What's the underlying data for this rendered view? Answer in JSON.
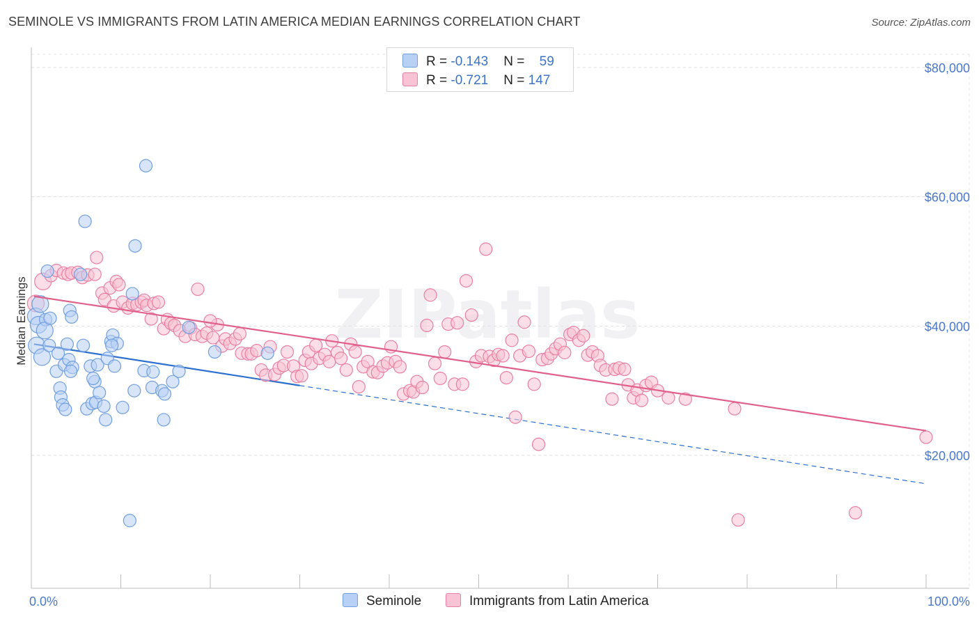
{
  "title": "SEMINOLE VS IMMIGRANTS FROM LATIN AMERICA MEDIAN EARNINGS CORRELATION CHART",
  "source": "Source: ZipAtlas.com",
  "watermark": "ZIPatlas",
  "colors": {
    "seminole": "#6f9fe0",
    "seminole_fill": "#b8d0f4",
    "seminole_line": "#2b6fd1",
    "latin": "#ea7fa3",
    "latin_fill": "#f8c3d4",
    "latin_line": "#e0608a",
    "tick_text": "#4a78c8"
  },
  "legend": {
    "rows": [
      {
        "r_label": "R = ",
        "r_value": "-0.143",
        "n_label": "N = ",
        "n_value": "59"
      },
      {
        "r_label": "R = ",
        "r_value": "-0.721",
        "n_label": "N = ",
        "n_value": "147"
      }
    ]
  },
  "bottom_legend": [
    "Seminole",
    "Immigrants from Latin America"
  ],
  "chart_data": {
    "type": "scatter",
    "xlabel": "",
    "ylabel": "Median Earnings",
    "xlim": [
      0,
      100
    ],
    "ylim": [
      0,
      82000
    ],
    "x_tick_labels": [
      "0.0%",
      "100.0%"
    ],
    "y_ticks": [
      20000,
      40000,
      60000,
      80000
    ],
    "y_tick_labels": [
      "$20,000",
      "$40,000",
      "$60,000",
      "$80,000"
    ],
    "grid": true,
    "legend_position": "top-center",
    "series": [
      {
        "name": "Seminole",
        "stats": {
          "R": -0.143,
          "N": 59
        },
        "trend": {
          "x0": 0.3,
          "y0": 37200,
          "x1": 30,
          "y1": 30800,
          "dashed_to_x": 100,
          "dashed_y1": 15600
        },
        "points": [
          [
            0.5,
            41500
          ],
          [
            0.8,
            40200
          ],
          [
            0.6,
            37000
          ],
          [
            1.2,
            35200
          ],
          [
            1.8,
            48500
          ],
          [
            1.6,
            41000
          ],
          [
            1.5,
            39300
          ],
          [
            2.1,
            41200
          ],
          [
            2.0,
            37000
          ],
          [
            2.8,
            33000
          ],
          [
            3.0,
            35800
          ],
          [
            3.2,
            30400
          ],
          [
            3.3,
            29000
          ],
          [
            3.5,
            27800
          ],
          [
            3.8,
            27100
          ],
          [
            4.0,
            37200
          ],
          [
            3.7,
            34000
          ],
          [
            4.2,
            34800
          ],
          [
            4.3,
            42400
          ],
          [
            4.5,
            41400
          ],
          [
            4.6,
            33600
          ],
          [
            5.5,
            48000
          ],
          [
            4.4,
            33000
          ],
          [
            5.8,
            37000
          ],
          [
            6.2,
            27200
          ],
          [
            6.0,
            56200
          ],
          [
            6.6,
            33800
          ],
          [
            6.8,
            28000
          ],
          [
            7.1,
            31400
          ],
          [
            6.9,
            31900
          ],
          [
            7.2,
            28200
          ],
          [
            7.6,
            29700
          ],
          [
            8.1,
            27600
          ],
          [
            8.3,
            25500
          ],
          [
            7.4,
            34000
          ],
          [
            8.5,
            35000
          ],
          [
            8.9,
            37600
          ],
          [
            9.1,
            38600
          ],
          [
            9.3,
            33800
          ],
          [
            9.6,
            37300
          ],
          [
            9.0,
            37000
          ],
          [
            10.2,
            27400
          ],
          [
            11.0,
            9900
          ],
          [
            11.3,
            45000
          ],
          [
            11.5,
            30000
          ],
          [
            11.6,
            52400
          ],
          [
            12.6,
            33100
          ],
          [
            12.8,
            64800
          ],
          [
            13.5,
            30500
          ],
          [
            13.6,
            32900
          ],
          [
            14.6,
            30000
          ],
          [
            14.9,
            29500
          ],
          [
            14.8,
            25500
          ],
          [
            15.8,
            31400
          ],
          [
            16.5,
            33000
          ],
          [
            17.6,
            39800
          ],
          [
            20.5,
            36000
          ],
          [
            26.4,
            35800
          ],
          [
            1.0,
            43400
          ]
        ]
      },
      {
        "name": "Immigrants from Latin America",
        "stats": {
          "R": -0.721,
          "N": 147
        },
        "trend": {
          "x0": 0.3,
          "y0": 44600,
          "x1": 100,
          "y1": 23800
        },
        "points": [
          [
            0.5,
            43500
          ],
          [
            1.3,
            46900
          ],
          [
            2.2,
            47800
          ],
          [
            2.8,
            48600
          ],
          [
            3.6,
            48200
          ],
          [
            4.1,
            48000
          ],
          [
            4.5,
            48200
          ],
          [
            5.2,
            48300
          ],
          [
            5.7,
            47500
          ],
          [
            6.3,
            47900
          ],
          [
            7.3,
            50600
          ],
          [
            7.1,
            48000
          ],
          [
            7.9,
            45100
          ],
          [
            8.2,
            44100
          ],
          [
            8.8,
            45900
          ],
          [
            9.2,
            43100
          ],
          [
            9.5,
            46900
          ],
          [
            9.8,
            46400
          ],
          [
            10.2,
            43700
          ],
          [
            10.8,
            42800
          ],
          [
            11.3,
            43500
          ],
          [
            11.8,
            43300
          ],
          [
            12.3,
            43700
          ],
          [
            12.6,
            44000
          ],
          [
            12.9,
            43200
          ],
          [
            13.4,
            41100
          ],
          [
            13.7,
            43500
          ],
          [
            14.2,
            43700
          ],
          [
            14.8,
            39600
          ],
          [
            15.2,
            41000
          ],
          [
            15.6,
            40400
          ],
          [
            16.0,
            40100
          ],
          [
            16.6,
            39300
          ],
          [
            17.2,
            38400
          ],
          [
            17.8,
            39700
          ],
          [
            18.3,
            38700
          ],
          [
            18.6,
            45700
          ],
          [
            19.1,
            38400
          ],
          [
            19.6,
            38900
          ],
          [
            20.3,
            38200
          ],
          [
            20.8,
            40200
          ],
          [
            21.3,
            36900
          ],
          [
            21.7,
            38000
          ],
          [
            22.2,
            37300
          ],
          [
            22.8,
            38000
          ],
          [
            23.3,
            38800
          ],
          [
            23.5,
            35800
          ],
          [
            24.2,
            35700
          ],
          [
            24.6,
            35700
          ],
          [
            25.2,
            36200
          ],
          [
            25.7,
            33200
          ],
          [
            26.2,
            32400
          ],
          [
            26.7,
            36800
          ],
          [
            27.2,
            32500
          ],
          [
            27.7,
            33500
          ],
          [
            28.2,
            33900
          ],
          [
            28.6,
            36000
          ],
          [
            29.3,
            33800
          ],
          [
            29.7,
            32200
          ],
          [
            30.2,
            32300
          ],
          [
            30.6,
            34700
          ],
          [
            31.0,
            36000
          ],
          [
            31.3,
            34200
          ],
          [
            31.8,
            37000
          ],
          [
            32.2,
            35000
          ],
          [
            32.8,
            35600
          ],
          [
            33.3,
            34500
          ],
          [
            33.6,
            37700
          ],
          [
            34.2,
            35900
          ],
          [
            34.6,
            35000
          ],
          [
            35.2,
            33200
          ],
          [
            35.7,
            37200
          ],
          [
            36.2,
            36000
          ],
          [
            36.6,
            30600
          ],
          [
            37.1,
            33700
          ],
          [
            37.6,
            34500
          ],
          [
            38.2,
            32900
          ],
          [
            38.7,
            32800
          ],
          [
            39.3,
            33800
          ],
          [
            39.8,
            34300
          ],
          [
            40.2,
            36800
          ],
          [
            40.7,
            34500
          ],
          [
            41.2,
            33700
          ],
          [
            41.6,
            29500
          ],
          [
            42.3,
            30000
          ],
          [
            42.7,
            29800
          ],
          [
            43.1,
            31400
          ],
          [
            43.7,
            30500
          ],
          [
            44.2,
            40100
          ],
          [
            44.6,
            44800
          ],
          [
            45.1,
            34200
          ],
          [
            45.7,
            31900
          ],
          [
            46.2,
            36000
          ],
          [
            46.6,
            40300
          ],
          [
            47.3,
            31000
          ],
          [
            47.6,
            40500
          ],
          [
            48.2,
            31000
          ],
          [
            48.6,
            47000
          ],
          [
            49.2,
            41700
          ],
          [
            49.7,
            34500
          ],
          [
            50.3,
            35400
          ],
          [
            50.8,
            51900
          ],
          [
            51.2,
            35300
          ],
          [
            51.7,
            34700
          ],
          [
            52.2,
            35600
          ],
          [
            52.7,
            35400
          ],
          [
            53.1,
            32000
          ],
          [
            53.7,
            37800
          ],
          [
            54.1,
            25900
          ],
          [
            54.6,
            35400
          ],
          [
            55.1,
            40600
          ],
          [
            55.6,
            36100
          ],
          [
            56.2,
            31000
          ],
          [
            56.7,
            21700
          ],
          [
            57.1,
            34800
          ],
          [
            57.7,
            35000
          ],
          [
            58.1,
            35700
          ],
          [
            58.6,
            36500
          ],
          [
            59.1,
            37200
          ],
          [
            59.6,
            35900
          ],
          [
            60.2,
            38700
          ],
          [
            60.6,
            39000
          ],
          [
            61.2,
            37800
          ],
          [
            61.7,
            38500
          ],
          [
            62.2,
            35500
          ],
          [
            62.7,
            36000
          ],
          [
            63.3,
            35400
          ],
          [
            63.6,
            33900
          ],
          [
            64.2,
            33200
          ],
          [
            64.9,
            28700
          ],
          [
            65.2,
            33300
          ],
          [
            65.7,
            33500
          ],
          [
            66.3,
            33300
          ],
          [
            66.7,
            30900
          ],
          [
            67.3,
            28900
          ],
          [
            67.7,
            30100
          ],
          [
            68.2,
            28500
          ],
          [
            68.7,
            30800
          ],
          [
            69.3,
            31300
          ],
          [
            70.0,
            30000
          ],
          [
            71.2,
            28900
          ],
          [
            73.1,
            28700
          ],
          [
            78.6,
            27200
          ],
          [
            79.0,
            10000
          ],
          [
            92.1,
            11100
          ],
          [
            100.0,
            22800
          ],
          [
            20.0,
            40800
          ]
        ]
      }
    ]
  }
}
